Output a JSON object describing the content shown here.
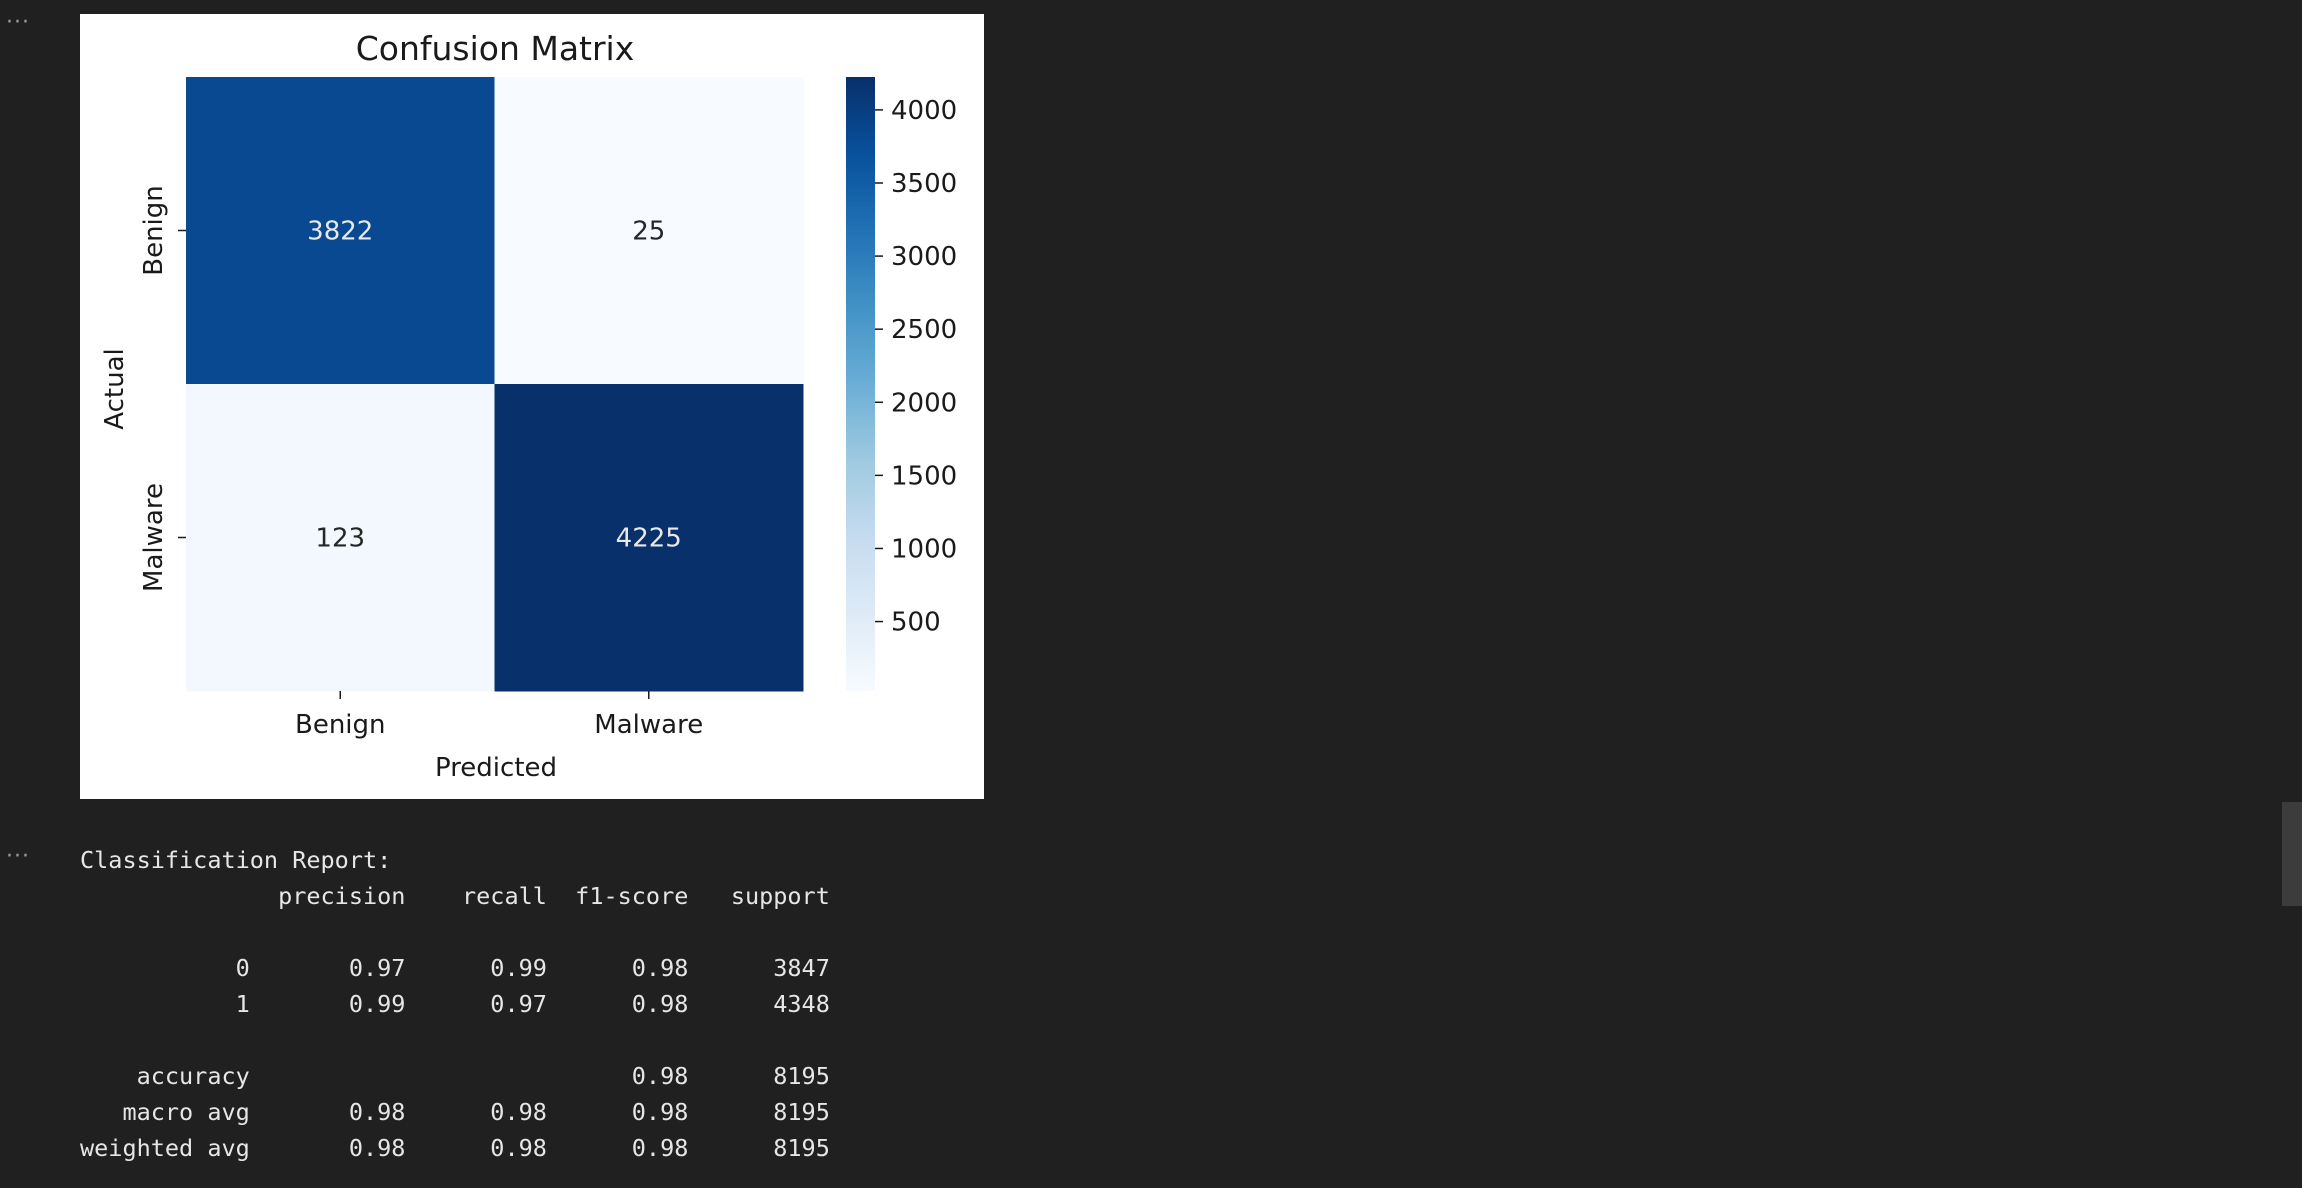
{
  "output_gutter": {
    "ellipsis": "···"
  },
  "figure": {
    "title": "Confusion Matrix",
    "chart_data": {
      "type": "heatmap",
      "title": "Confusion Matrix",
      "xlabel": "Predicted",
      "ylabel": "Actual",
      "x_categories": [
        "Benign",
        "Malware"
      ],
      "y_categories": [
        "Benign",
        "Malware"
      ],
      "values": [
        [
          3822,
          25
        ],
        [
          123,
          4225
        ]
      ],
      "colormap": "Blues",
      "vmin": 25,
      "vmax": 4225,
      "colorbar_ticks": [
        500,
        1000,
        1500,
        2000,
        2500,
        3000,
        3500,
        4000
      ],
      "colorbar_tick_labels": [
        "500",
        "1000",
        "1500",
        "2000",
        "2500",
        "3000",
        "3500",
        "4000"
      ],
      "annotation_colors": {
        "dark_cell": "#e8e8e8",
        "light_cell": "#262626"
      }
    }
  },
  "report": {
    "lines": [
      "Classification Report:",
      "              precision    recall  f1-score   support",
      "",
      "           0       0.97      0.99      0.98      3847",
      "           1       0.99      0.97      0.98      4348",
      "",
      "    accuracy                           0.98      8195",
      "   macro avg       0.98      0.98      0.98      8195",
      "weighted avg       0.98      0.98      0.98      8195"
    ]
  }
}
